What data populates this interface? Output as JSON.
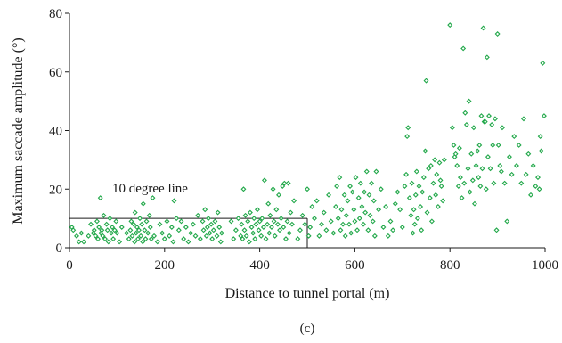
{
  "chart_data": {
    "type": "scatter",
    "title": "",
    "caption": "(c)",
    "xlabel": "Distance to tunnel portal (m)",
    "ylabel": "Maximum saccade amplitude (°)",
    "xlim": [
      0,
      1000
    ],
    "ylim": [
      0,
      80
    ],
    "x_ticks": [
      0,
      200,
      400,
      600,
      800,
      1000
    ],
    "y_ticks": [
      0,
      20,
      40,
      60,
      80
    ],
    "grid": false,
    "legend": "none",
    "marker_color": "#22a84a",
    "annotation": {
      "text": "10 degree line",
      "box_x": [
        0,
        500
      ],
      "box_y": [
        0,
        10
      ]
    },
    "points": [
      [
        5,
        7
      ],
      [
        8,
        6
      ],
      [
        15,
        4
      ],
      [
        20,
        2
      ],
      [
        25,
        5
      ],
      [
        30,
        2
      ],
      [
        40,
        4
      ],
      [
        45,
        8
      ],
      [
        50,
        5
      ],
      [
        52,
        6
      ],
      [
        55,
        4
      ],
      [
        58,
        9
      ],
      [
        60,
        3
      ],
      [
        62,
        7
      ],
      [
        65,
        17
      ],
      [
        66,
        5
      ],
      [
        68,
        6
      ],
      [
        70,
        4
      ],
      [
        72,
        11
      ],
      [
        75,
        3
      ],
      [
        78,
        8
      ],
      [
        80,
        6
      ],
      [
        82,
        2
      ],
      [
        85,
        10
      ],
      [
        88,
        5
      ],
      [
        90,
        7
      ],
      [
        92,
        3
      ],
      [
        95,
        6
      ],
      [
        98,
        9
      ],
      [
        100,
        5
      ],
      [
        105,
        2
      ],
      [
        110,
        7
      ],
      [
        120,
        5
      ],
      [
        125,
        3
      ],
      [
        128,
        6
      ],
      [
        130,
        9
      ],
      [
        132,
        4
      ],
      [
        135,
        8
      ],
      [
        137,
        2
      ],
      [
        138,
        12
      ],
      [
        140,
        5
      ],
      [
        142,
        7
      ],
      [
        144,
        3
      ],
      [
        146,
        6
      ],
      [
        148,
        10
      ],
      [
        150,
        4
      ],
      [
        152,
        8
      ],
      [
        154,
        2
      ],
      [
        155,
        15
      ],
      [
        158,
        6
      ],
      [
        160,
        3
      ],
      [
        162,
        9
      ],
      [
        165,
        5
      ],
      [
        168,
        11
      ],
      [
        170,
        7
      ],
      [
        172,
        3
      ],
      [
        175,
        17
      ],
      [
        178,
        4
      ],
      [
        185,
        2
      ],
      [
        190,
        8
      ],
      [
        195,
        5
      ],
      [
        200,
        3
      ],
      [
        205,
        9
      ],
      [
        210,
        4
      ],
      [
        215,
        7
      ],
      [
        218,
        2
      ],
      [
        220,
        16
      ],
      [
        225,
        10
      ],
      [
        230,
        6
      ],
      [
        235,
        9
      ],
      [
        240,
        3
      ],
      [
        245,
        7
      ],
      [
        250,
        2
      ],
      [
        255,
        5
      ],
      [
        260,
        8
      ],
      [
        265,
        4
      ],
      [
        270,
        11
      ],
      [
        275,
        3
      ],
      [
        280,
        9
      ],
      [
        282,
        6
      ],
      [
        285,
        13
      ],
      [
        288,
        4
      ],
      [
        290,
        7
      ],
      [
        292,
        10
      ],
      [
        295,
        5
      ],
      [
        298,
        8
      ],
      [
        300,
        3
      ],
      [
        303,
        6
      ],
      [
        306,
        9
      ],
      [
        310,
        4
      ],
      [
        312,
        12
      ],
      [
        315,
        7
      ],
      [
        318,
        2
      ],
      [
        320,
        5
      ],
      [
        340,
        9
      ],
      [
        345,
        3
      ],
      [
        350,
        6
      ],
      [
        355,
        10
      ],
      [
        360,
        4
      ],
      [
        362,
        8
      ],
      [
        364,
        3
      ],
      [
        366,
        20
      ],
      [
        368,
        6
      ],
      [
        370,
        11
      ],
      [
        372,
        4
      ],
      [
        375,
        9
      ],
      [
        378,
        2
      ],
      [
        380,
        12
      ],
      [
        383,
        7
      ],
      [
        386,
        5
      ],
      [
        388,
        10
      ],
      [
        390,
        3
      ],
      [
        392,
        8
      ],
      [
        395,
        13
      ],
      [
        398,
        6
      ],
      [
        400,
        9
      ],
      [
        403,
        4
      ],
      [
        405,
        10
      ],
      [
        408,
        7
      ],
      [
        410,
        23
      ],
      [
        413,
        3
      ],
      [
        416,
        8
      ],
      [
        418,
        15
      ],
      [
        420,
        5
      ],
      [
        422,
        11
      ],
      [
        425,
        7
      ],
      [
        428,
        20
      ],
      [
        430,
        9
      ],
      [
        432,
        4
      ],
      [
        435,
        13
      ],
      [
        438,
        8
      ],
      [
        440,
        18
      ],
      [
        442,
        6
      ],
      [
        445,
        10
      ],
      [
        448,
        21
      ],
      [
        450,
        7
      ],
      [
        452,
        22
      ],
      [
        455,
        3
      ],
      [
        458,
        9
      ],
      [
        460,
        22
      ],
      [
        462,
        5
      ],
      [
        465,
        12
      ],
      [
        468,
        8
      ],
      [
        472,
        16
      ],
      [
        480,
        3
      ],
      [
        485,
        6
      ],
      [
        490,
        11
      ],
      [
        495,
        8
      ],
      [
        500,
        20
      ],
      [
        503,
        4
      ],
      [
        506,
        7
      ],
      [
        510,
        14
      ],
      [
        515,
        10
      ],
      [
        520,
        16
      ],
      [
        525,
        4
      ],
      [
        530,
        8
      ],
      [
        535,
        12
      ],
      [
        540,
        6
      ],
      [
        545,
        18
      ],
      [
        550,
        9
      ],
      [
        555,
        5
      ],
      [
        560,
        14
      ],
      [
        562,
        21
      ],
      [
        565,
        10
      ],
      [
        568,
        24
      ],
      [
        570,
        6
      ],
      [
        572,
        13
      ],
      [
        575,
        8
      ],
      [
        578,
        18
      ],
      [
        580,
        4
      ],
      [
        582,
        11
      ],
      [
        585,
        16
      ],
      [
        588,
        8
      ],
      [
        590,
        21
      ],
      [
        592,
        5
      ],
      [
        595,
        19
      ],
      [
        598,
        13
      ],
      [
        600,
        9
      ],
      [
        602,
        24
      ],
      [
        605,
        6
      ],
      [
        608,
        17
      ],
      [
        610,
        10
      ],
      [
        612,
        22
      ],
      [
        615,
        14
      ],
      [
        618,
        8
      ],
      [
        620,
        19
      ],
      [
        622,
        12
      ],
      [
        625,
        26
      ],
      [
        628,
        6
      ],
      [
        630,
        18
      ],
      [
        632,
        11
      ],
      [
        635,
        22
      ],
      [
        638,
        9
      ],
      [
        640,
        16
      ],
      [
        642,
        4
      ],
      [
        645,
        26
      ],
      [
        650,
        13
      ],
      [
        655,
        20
      ],
      [
        660,
        7
      ],
      [
        665,
        14
      ],
      [
        670,
        4
      ],
      [
        675,
        9
      ],
      [
        680,
        6
      ],
      [
        685,
        15
      ],
      [
        690,
        19
      ],
      [
        695,
        13
      ],
      [
        700,
        7
      ],
      [
        705,
        21
      ],
      [
        708,
        25
      ],
      [
        710,
        38
      ],
      [
        712,
        41
      ],
      [
        715,
        17
      ],
      [
        718,
        11
      ],
      [
        720,
        22
      ],
      [
        722,
        5
      ],
      [
        724,
        13
      ],
      [
        726,
        8
      ],
      [
        728,
        18
      ],
      [
        730,
        26
      ],
      [
        732,
        10
      ],
      [
        735,
        21
      ],
      [
        738,
        14
      ],
      [
        740,
        6
      ],
      [
        742,
        19
      ],
      [
        745,
        24
      ],
      [
        748,
        33
      ],
      [
        750,
        57
      ],
      [
        752,
        12
      ],
      [
        755,
        27
      ],
      [
        758,
        17
      ],
      [
        760,
        28
      ],
      [
        762,
        9
      ],
      [
        765,
        22
      ],
      [
        768,
        30
      ],
      [
        770,
        18
      ],
      [
        772,
        25
      ],
      [
        775,
        14
      ],
      [
        778,
        29
      ],
      [
        780,
        23
      ],
      [
        782,
        21
      ],
      [
        785,
        16
      ],
      [
        788,
        30
      ],
      [
        800,
        76
      ],
      [
        805,
        41
      ],
      [
        808,
        35
      ],
      [
        810,
        31
      ],
      [
        812,
        32
      ],
      [
        815,
        28
      ],
      [
        818,
        21
      ],
      [
        820,
        34
      ],
      [
        822,
        24
      ],
      [
        825,
        17
      ],
      [
        828,
        68
      ],
      [
        830,
        22
      ],
      [
        832,
        46
      ],
      [
        835,
        42
      ],
      [
        838,
        27
      ],
      [
        840,
        50
      ],
      [
        842,
        19
      ],
      [
        845,
        32
      ],
      [
        848,
        23
      ],
      [
        850,
        41
      ],
      [
        852,
        15
      ],
      [
        855,
        28
      ],
      [
        858,
        33
      ],
      [
        860,
        24
      ],
      [
        862,
        35
      ],
      [
        864,
        21
      ],
      [
        866,
        45
      ],
      [
        868,
        27
      ],
      [
        870,
        75
      ],
      [
        872,
        43
      ],
      [
        874,
        43
      ],
      [
        876,
        20
      ],
      [
        878,
        65
      ],
      [
        880,
        31
      ],
      [
        882,
        45
      ],
      [
        885,
        27
      ],
      [
        888,
        42
      ],
      [
        890,
        35
      ],
      [
        892,
        22
      ],
      [
        895,
        44
      ],
      [
        898,
        6
      ],
      [
        900,
        73
      ],
      [
        902,
        35
      ],
      [
        905,
        28
      ],
      [
        908,
        26
      ],
      [
        910,
        41
      ],
      [
        915,
        22
      ],
      [
        920,
        9
      ],
      [
        925,
        31
      ],
      [
        930,
        25
      ],
      [
        935,
        38
      ],
      [
        940,
        28
      ],
      [
        945,
        35
      ],
      [
        950,
        22
      ],
      [
        955,
        44
      ],
      [
        960,
        25
      ],
      [
        965,
        32
      ],
      [
        970,
        18
      ],
      [
        975,
        28
      ],
      [
        980,
        21
      ],
      [
        985,
        24
      ],
      [
        988,
        20
      ],
      [
        990,
        38
      ],
      [
        992,
        33
      ],
      [
        995,
        63
      ],
      [
        998,
        45
      ]
    ]
  }
}
